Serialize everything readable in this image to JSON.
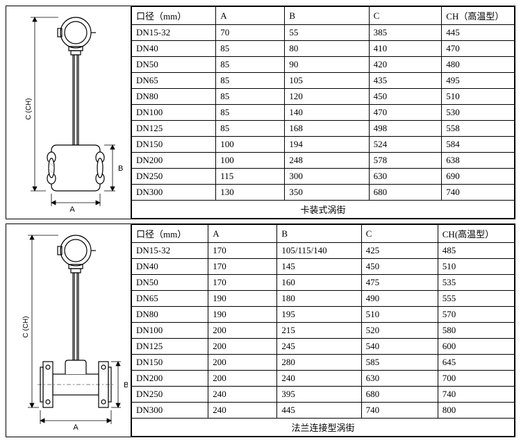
{
  "table1": {
    "caption": "卡装式涡街",
    "headers": [
      "口径（mm）",
      "A",
      "B",
      "C",
      "CH（高温型）"
    ],
    "rows": [
      [
        "DN15-32",
        "70",
        "55",
        "385",
        "445"
      ],
      [
        "DN40",
        "85",
        "80",
        "410",
        "470"
      ],
      [
        "DN50",
        "85",
        "90",
        "420",
        "480"
      ],
      [
        "DN65",
        "85",
        "105",
        "435",
        "495"
      ],
      [
        "DN80",
        "85",
        "120",
        "450",
        "510"
      ],
      [
        "DN100",
        "85",
        "140",
        "470",
        "530"
      ],
      [
        "DN125",
        "85",
        "168",
        "498",
        "558"
      ],
      [
        "DN150",
        "100",
        "194",
        "524",
        "584"
      ],
      [
        "DN200",
        "100",
        "248",
        "578",
        "638"
      ],
      [
        "DN250",
        "115",
        "300",
        "630",
        "690"
      ],
      [
        "DN300",
        "130",
        "350",
        "680",
        "740"
      ]
    ],
    "col_widths": [
      "22%",
      "18%",
      "22%",
      "19%",
      "19%"
    ]
  },
  "table2": {
    "caption": "法兰连接型涡街",
    "headers": [
      "口径（mm）",
      "A",
      "B",
      "C",
      "CH(高温型）"
    ],
    "rows": [
      [
        "DN15-32",
        "170",
        "105/115/140",
        "425",
        "485"
      ],
      [
        "DN40",
        "170",
        "145",
        "450",
        "510"
      ],
      [
        "DN50",
        "170",
        "160",
        "475",
        "535"
      ],
      [
        "DN65",
        "190",
        "180",
        "490",
        "555"
      ],
      [
        "DN80",
        "190",
        "195",
        "510",
        "570"
      ],
      [
        "DN100",
        "200",
        "215",
        "520",
        "580"
      ],
      [
        "DN125",
        "200",
        "245",
        "540",
        "600"
      ],
      [
        "DN150",
        "200",
        "280",
        "585",
        "645"
      ],
      [
        "DN200",
        "200",
        "240",
        "630",
        "700"
      ],
      [
        "DN250",
        "240",
        "395",
        "680",
        "740"
      ],
      [
        "DN300",
        "240",
        "445",
        "740",
        "800"
      ]
    ],
    "col_widths": [
      "20%",
      "18%",
      "22%",
      "20%",
      "20%"
    ]
  },
  "diagram": {
    "label_A": "A",
    "label_B": "B",
    "label_C": "C (CH)",
    "stroke": "#000",
    "fill": "#fff",
    "hatch": "#aaa"
  }
}
